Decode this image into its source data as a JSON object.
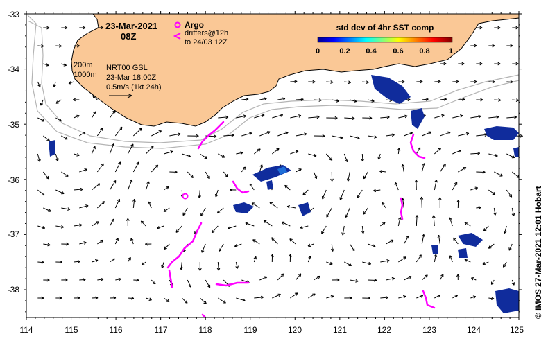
{
  "map": {
    "title_date": "23-Mar-2021",
    "title_time": "08Z",
    "legend_argo": "Argo",
    "legend_drifters_line1": "drifters@12h",
    "legend_drifters_line2": "to 24/03 12Z",
    "depth_label_200": "200m",
    "depth_label_1000": "1000m",
    "current_source": "NRT00 GSL",
    "current_time": "23-Mar 18:00Z",
    "scale_label": "0.5m/s (1kt 24h)",
    "colorbar_title": "std dev of 4hr SST comp",
    "colorbar_ticks": [
      "0",
      "0.2",
      "0.4",
      "0.6",
      "0.8",
      "1"
    ],
    "credit": "© IMOS 27-Mar-2021 12:01 Hobart",
    "lon_ticks": [
      "114",
      "115",
      "116",
      "117",
      "118",
      "119",
      "120",
      "121",
      "122",
      "123",
      "124",
      "125"
    ],
    "lat_ticks": [
      "-33",
      "-34",
      "-35",
      "-36",
      "-37",
      "-38"
    ],
    "colors": {
      "land": "#fac896",
      "drifter": "#ff00ff",
      "sst_dark": "#102c9c",
      "sst_mid": "#1e6ed8",
      "isobath": "#b4b4b4"
    }
  }
}
